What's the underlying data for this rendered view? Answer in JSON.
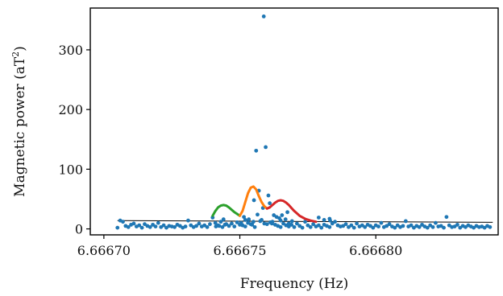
{
  "chart_data": {
    "type": "scatter",
    "xlabel": "Frequency (Hz)",
    "ylabel_main": "Magnetic power (aT",
    "ylabel_sup": "2",
    "ylabel_close": ")",
    "xlim": [
      6.666695,
      6.666845
    ],
    "ylim": [
      -10,
      370
    ],
    "x_ticks": [
      6.6667,
      6.66675,
      6.6668
    ],
    "x_tick_labels": [
      "6.66670",
      "6.66675",
      "6.66680"
    ],
    "y_ticks": [
      0,
      100,
      200,
      300
    ],
    "y_tick_labels": [
      "0",
      "100",
      "200",
      "300"
    ],
    "colors": {
      "points": "#1f77b4",
      "baseline": "#000000",
      "peak_left": "#2ca02c",
      "peak_center": "#ff7f0e",
      "peak_right": "#d62728"
    },
    "baseline": {
      "x": [
        6.666705,
        6.666843
      ],
      "y": [
        14,
        11
      ]
    },
    "peaks": [
      {
        "x": [
          6.66674,
          6.666741,
          6.666742,
          6.666743,
          6.666744,
          6.666745,
          6.666746,
          6.666747,
          6.666748,
          6.666749,
          6.66675
        ],
        "y": [
          22,
          30,
          36,
          39,
          40,
          39,
          36,
          32,
          28,
          25,
          22
        ],
        "color_key": "peak_left"
      },
      {
        "x": [
          6.66675,
          6.666751,
          6.666752,
          6.666753,
          6.666754,
          6.666755,
          6.666756,
          6.666757,
          6.666758,
          6.666759,
          6.66676,
          6.666761
        ],
        "y": [
          22,
          30,
          45,
          60,
          69,
          71,
          66,
          55,
          45,
          38,
          34,
          36
        ],
        "color_key": "peak_center"
      },
      {
        "x": [
          6.66676,
          6.666761,
          6.666762,
          6.666763,
          6.666764,
          6.666765,
          6.666766,
          6.666767,
          6.666768,
          6.666769,
          6.66677,
          6.666772,
          6.666774,
          6.666776,
          6.666778
        ],
        "y": [
          34,
          36,
          40,
          44,
          47,
          48,
          47,
          44,
          40,
          35,
          30,
          22,
          17,
          14,
          12
        ],
        "color_key": "peak_right"
      }
    ],
    "points": [
      [
        6.666705,
        2
      ],
      [
        6.666706,
        14
      ],
      [
        6.666707,
        12
      ],
      [
        6.666708,
        5
      ],
      [
        6.666709,
        3
      ],
      [
        6.66671,
        7
      ],
      [
        6.666711,
        9
      ],
      [
        6.666712,
        4
      ],
      [
        6.666713,
        6
      ],
      [
        6.666714,
        2
      ],
      [
        6.666715,
        8
      ],
      [
        6.666716,
        5
      ],
      [
        6.666717,
        3
      ],
      [
        6.666718,
        7
      ],
      [
        6.666719,
        4
      ],
      [
        6.66672,
        10
      ],
      [
        6.666721,
        3
      ],
      [
        6.666722,
        6
      ],
      [
        6.666723,
        2
      ],
      [
        6.666724,
        5
      ],
      [
        6.666725,
        4
      ],
      [
        6.666726,
        3
      ],
      [
        6.666727,
        7
      ],
      [
        6.666728,
        5
      ],
      [
        6.666729,
        2
      ],
      [
        6.66673,
        4
      ],
      [
        6.666731,
        14
      ],
      [
        6.666732,
        6
      ],
      [
        6.666733,
        3
      ],
      [
        6.666734,
        5
      ],
      [
        6.666735,
        9
      ],
      [
        6.666736,
        4
      ],
      [
        6.666737,
        6
      ],
      [
        6.666738,
        3
      ],
      [
        6.666739,
        8
      ],
      [
        6.66674,
        19
      ],
      [
        6.666741,
        10
      ],
      [
        6.666742,
        6
      ],
      [
        6.666743,
        12
      ],
      [
        6.666744,
        16
      ],
      [
        6.666745,
        8
      ],
      [
        6.666746,
        5
      ],
      [
        6.666747,
        9
      ],
      [
        6.666748,
        4
      ],
      [
        6.666749,
        11
      ],
      [
        6.66675,
        7
      ],
      [
        6.666751,
        6
      ],
      [
        6.666752,
        15
      ],
      [
        6.666753,
        10
      ],
      [
        6.666754,
        8
      ],
      [
        6.666755,
        12
      ],
      [
        6.666756,
        131
      ],
      [
        6.666757,
        64
      ],
      [
        6.666758,
        15
      ],
      [
        6.666759,
        9
      ],
      [
        6.66676,
        8
      ],
      [
        6.666761,
        43
      ],
      [
        6.666762,
        12
      ],
      [
        6.666763,
        7
      ],
      [
        6.666764,
        5
      ],
      [
        6.666765,
        14
      ],
      [
        6.666766,
        9
      ],
      [
        6.666767,
        6
      ],
      [
        6.666768,
        4
      ],
      [
        6.666769,
        7
      ],
      [
        6.66677,
        3
      ],
      [
        6.666771,
        9
      ],
      [
        6.666772,
        5
      ],
      [
        6.666773,
        2
      ],
      [
        6.666774,
        12
      ],
      [
        6.666775,
        6
      ],
      [
        6.666776,
        3
      ],
      [
        6.666777,
        8
      ],
      [
        6.666778,
        4
      ],
      [
        6.666779,
        6
      ],
      [
        6.66678,
        2
      ],
      [
        6.666781,
        7
      ],
      [
        6.666782,
        5
      ],
      [
        6.666783,
        3
      ],
      [
        6.666784,
        9
      ],
      [
        6.666785,
        12
      ],
      [
        6.666786,
        6
      ],
      [
        6.666787,
        4
      ],
      [
        6.666788,
        5
      ],
      [
        6.666789,
        8
      ],
      [
        6.66679,
        3
      ],
      [
        6.666791,
        6
      ],
      [
        6.666792,
        2
      ],
      [
        6.666793,
        9
      ],
      [
        6.666794,
        4
      ],
      [
        6.666795,
        6
      ],
      [
        6.666796,
        3
      ],
      [
        6.666797,
        7
      ],
      [
        6.666798,
        5
      ],
      [
        6.666799,
        2
      ],
      [
        6.6668,
        6
      ],
      [
        6.666801,
        4
      ],
      [
        6.666802,
        10
      ],
      [
        6.666803,
        3
      ],
      [
        6.666804,
        5
      ],
      [
        6.666805,
        8
      ],
      [
        6.666806,
        4
      ],
      [
        6.666807,
        2
      ],
      [
        6.666808,
        6
      ],
      [
        6.666809,
        3
      ],
      [
        6.66681,
        5
      ],
      [
        6.666811,
        13
      ],
      [
        6.666812,
        4
      ],
      [
        6.666813,
        6
      ],
      [
        6.666814,
        2
      ],
      [
        6.666815,
        5
      ],
      [
        6.666816,
        3
      ],
      [
        6.666817,
        7
      ],
      [
        6.666818,
        4
      ],
      [
        6.666819,
        2
      ],
      [
        6.66682,
        6
      ],
      [
        6.666821,
        3
      ],
      [
        6.666822,
        10
      ],
      [
        6.666823,
        4
      ],
      [
        6.666824,
        5
      ],
      [
        6.666825,
        2
      ],
      [
        6.666826,
        20
      ],
      [
        6.666827,
        6
      ],
      [
        6.666828,
        3
      ],
      [
        6.666829,
        4
      ],
      [
        6.66683,
        7
      ],
      [
        6.666831,
        2
      ],
      [
        6.666832,
        5
      ],
      [
        6.666833,
        3
      ],
      [
        6.666834,
        6
      ],
      [
        6.666835,
        4
      ],
      [
        6.666836,
        2
      ],
      [
        6.666837,
        5
      ],
      [
        6.666838,
        3
      ],
      [
        6.666839,
        4
      ],
      [
        6.66684,
        2
      ],
      [
        6.666841,
        5
      ],
      [
        6.666842,
        3
      ],
      [
        6.6667565,
        24
      ],
      [
        6.6667575,
        13
      ],
      [
        6.6667552,
        48
      ],
      [
        6.6667585,
        35
      ],
      [
        6.6667515,
        20
      ],
      [
        6.6667595,
        137
      ],
      [
        6.6667588,
        356
      ],
      [
        6.6667605,
        56
      ],
      [
        6.6667625,
        23
      ],
      [
        6.6667635,
        20
      ],
      [
        6.6667645,
        18
      ],
      [
        6.6667655,
        23
      ],
      [
        6.6667668,
        16
      ],
      [
        6.6667675,
        28
      ],
      [
        6.666768,
        9
      ],
      [
        6.6667692,
        13
      ],
      [
        6.6667505,
        10
      ],
      [
        6.666752,
        4
      ],
      [
        6.6667533,
        16
      ],
      [
        6.6667612,
        11
      ],
      [
        6.6667555,
        3
      ],
      [
        6.6667545,
        7
      ],
      [
        6.6667618,
        9
      ],
      [
        6.666765,
        3
      ],
      [
        6.666779,
        19
      ],
      [
        6.666781,
        15
      ],
      [
        6.666783,
        17
      ],
      [
        6.6667832,
        14
      ],
      [
        6.6667436,
        3
      ],
      [
        6.6667424,
        5
      ],
      [
        6.6667445,
        7
      ],
      [
        6.6667412,
        4
      ]
    ]
  }
}
